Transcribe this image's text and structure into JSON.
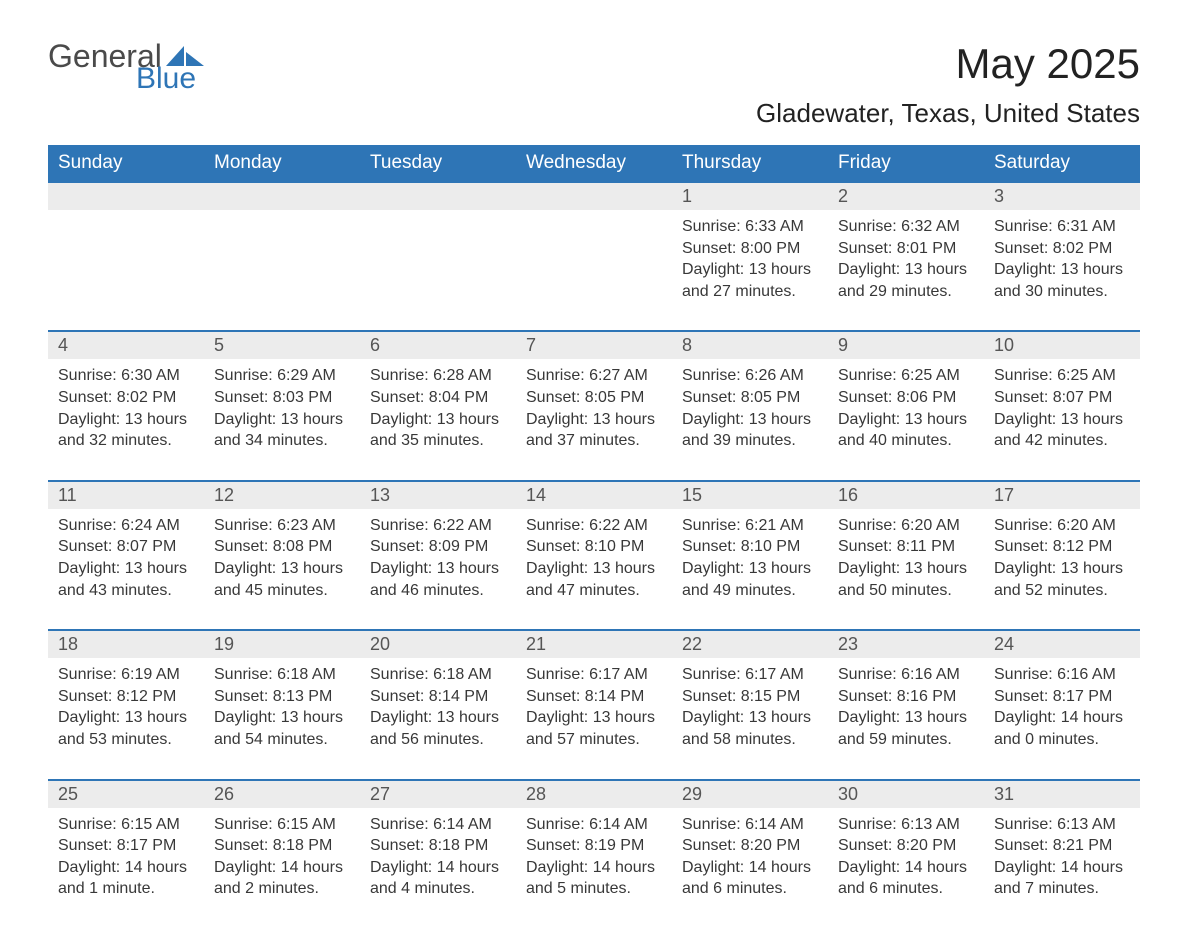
{
  "logo": {
    "general": "General",
    "blue": "Blue"
  },
  "title": "May 2025",
  "location": "Gladewater, Texas, United States",
  "colors": {
    "header_bg": "#2e75b6",
    "header_text": "#ffffff",
    "daynum_bg": "#ececec",
    "daynum_text": "#555555",
    "body_text": "#383838",
    "border": "#2e75b6",
    "logo_gray": "#4a4a4a",
    "logo_blue": "#2e75b6",
    "background": "#ffffff"
  },
  "weekdays": [
    "Sunday",
    "Monday",
    "Tuesday",
    "Wednesday",
    "Thursday",
    "Friday",
    "Saturday"
  ],
  "weeks": [
    [
      null,
      null,
      null,
      null,
      {
        "n": "1",
        "sunrise": "6:33 AM",
        "sunset": "8:00 PM",
        "daylight": "13 hours and 27 minutes."
      },
      {
        "n": "2",
        "sunrise": "6:32 AM",
        "sunset": "8:01 PM",
        "daylight": "13 hours and 29 minutes."
      },
      {
        "n": "3",
        "sunrise": "6:31 AM",
        "sunset": "8:02 PM",
        "daylight": "13 hours and 30 minutes."
      }
    ],
    [
      {
        "n": "4",
        "sunrise": "6:30 AM",
        "sunset": "8:02 PM",
        "daylight": "13 hours and 32 minutes."
      },
      {
        "n": "5",
        "sunrise": "6:29 AM",
        "sunset": "8:03 PM",
        "daylight": "13 hours and 34 minutes."
      },
      {
        "n": "6",
        "sunrise": "6:28 AM",
        "sunset": "8:04 PM",
        "daylight": "13 hours and 35 minutes."
      },
      {
        "n": "7",
        "sunrise": "6:27 AM",
        "sunset": "8:05 PM",
        "daylight": "13 hours and 37 minutes."
      },
      {
        "n": "8",
        "sunrise": "6:26 AM",
        "sunset": "8:05 PM",
        "daylight": "13 hours and 39 minutes."
      },
      {
        "n": "9",
        "sunrise": "6:25 AM",
        "sunset": "8:06 PM",
        "daylight": "13 hours and 40 minutes."
      },
      {
        "n": "10",
        "sunrise": "6:25 AM",
        "sunset": "8:07 PM",
        "daylight": "13 hours and 42 minutes."
      }
    ],
    [
      {
        "n": "11",
        "sunrise": "6:24 AM",
        "sunset": "8:07 PM",
        "daylight": "13 hours and 43 minutes."
      },
      {
        "n": "12",
        "sunrise": "6:23 AM",
        "sunset": "8:08 PM",
        "daylight": "13 hours and 45 minutes."
      },
      {
        "n": "13",
        "sunrise": "6:22 AM",
        "sunset": "8:09 PM",
        "daylight": "13 hours and 46 minutes."
      },
      {
        "n": "14",
        "sunrise": "6:22 AM",
        "sunset": "8:10 PM",
        "daylight": "13 hours and 47 minutes."
      },
      {
        "n": "15",
        "sunrise": "6:21 AM",
        "sunset": "8:10 PM",
        "daylight": "13 hours and 49 minutes."
      },
      {
        "n": "16",
        "sunrise": "6:20 AM",
        "sunset": "8:11 PM",
        "daylight": "13 hours and 50 minutes."
      },
      {
        "n": "17",
        "sunrise": "6:20 AM",
        "sunset": "8:12 PM",
        "daylight": "13 hours and 52 minutes."
      }
    ],
    [
      {
        "n": "18",
        "sunrise": "6:19 AM",
        "sunset": "8:12 PM",
        "daylight": "13 hours and 53 minutes."
      },
      {
        "n": "19",
        "sunrise": "6:18 AM",
        "sunset": "8:13 PM",
        "daylight": "13 hours and 54 minutes."
      },
      {
        "n": "20",
        "sunrise": "6:18 AM",
        "sunset": "8:14 PM",
        "daylight": "13 hours and 56 minutes."
      },
      {
        "n": "21",
        "sunrise": "6:17 AM",
        "sunset": "8:14 PM",
        "daylight": "13 hours and 57 minutes."
      },
      {
        "n": "22",
        "sunrise": "6:17 AM",
        "sunset": "8:15 PM",
        "daylight": "13 hours and 58 minutes."
      },
      {
        "n": "23",
        "sunrise": "6:16 AM",
        "sunset": "8:16 PM",
        "daylight": "13 hours and 59 minutes."
      },
      {
        "n": "24",
        "sunrise": "6:16 AM",
        "sunset": "8:17 PM",
        "daylight": "14 hours and 0 minutes."
      }
    ],
    [
      {
        "n": "25",
        "sunrise": "6:15 AM",
        "sunset": "8:17 PM",
        "daylight": "14 hours and 1 minute."
      },
      {
        "n": "26",
        "sunrise": "6:15 AM",
        "sunset": "8:18 PM",
        "daylight": "14 hours and 2 minutes."
      },
      {
        "n": "27",
        "sunrise": "6:14 AM",
        "sunset": "8:18 PM",
        "daylight": "14 hours and 4 minutes."
      },
      {
        "n": "28",
        "sunrise": "6:14 AM",
        "sunset": "8:19 PM",
        "daylight": "14 hours and 5 minutes."
      },
      {
        "n": "29",
        "sunrise": "6:14 AM",
        "sunset": "8:20 PM",
        "daylight": "14 hours and 6 minutes."
      },
      {
        "n": "30",
        "sunrise": "6:13 AM",
        "sunset": "8:20 PM",
        "daylight": "14 hours and 6 minutes."
      },
      {
        "n": "31",
        "sunrise": "6:13 AM",
        "sunset": "8:21 PM",
        "daylight": "14 hours and 7 minutes."
      }
    ]
  ],
  "labels": {
    "sunrise": "Sunrise:",
    "sunset": "Sunset:",
    "daylight": "Daylight:"
  }
}
